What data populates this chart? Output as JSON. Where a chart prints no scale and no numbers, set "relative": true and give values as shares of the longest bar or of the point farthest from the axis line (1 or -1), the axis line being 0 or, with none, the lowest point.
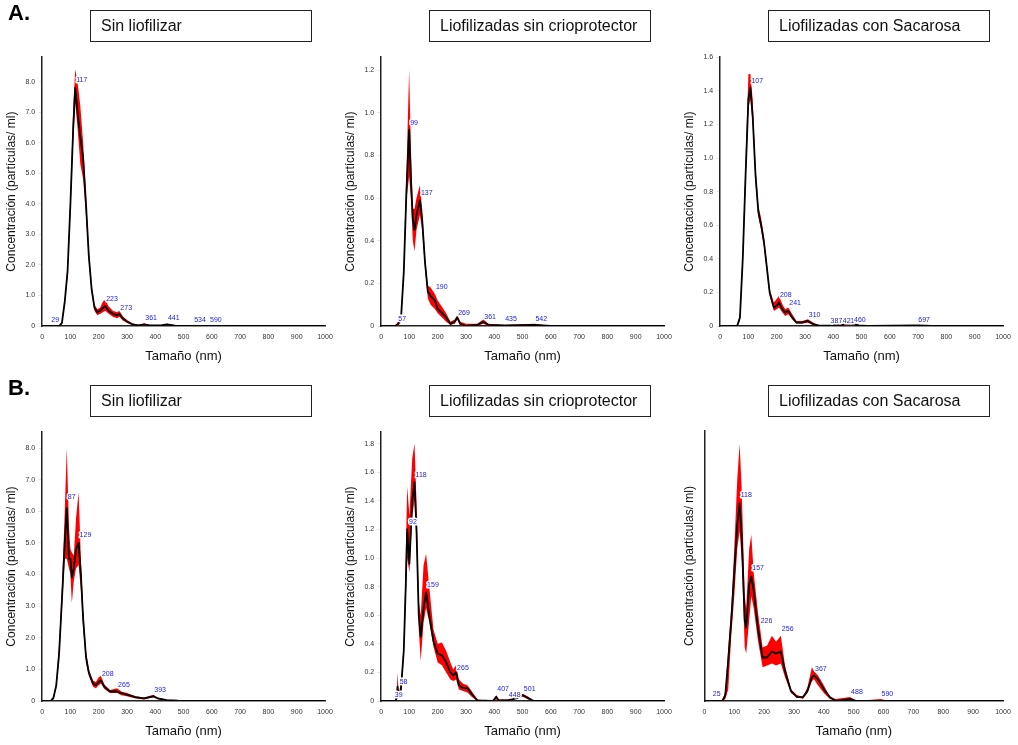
{
  "chart_data": [
    {
      "type": "line",
      "title": "Sin liofilizar",
      "xlabel": "Tamaño (nm)",
      "ylabel": "Concentración (partículas/ ml)",
      "xlim": [
        0,
        1000
      ],
      "xticks": [
        0,
        100,
        200,
        300,
        400,
        500,
        600,
        700,
        800,
        900,
        1000
      ],
      "ylim": [
        0,
        8.8
      ],
      "yticks": [
        0,
        {
          "value": 1,
          "label": "1.0"
        },
        {
          "value": 2,
          "label": "2.0"
        },
        {
          "value": 3,
          "label": "3.0"
        },
        {
          "value": 4,
          "label": "4.0"
        },
        {
          "value": 5,
          "label": "5.0"
        },
        {
          "value": 6,
          "label": "6.0"
        },
        {
          "value": 7,
          "label": "7.0"
        },
        {
          "value": 8,
          "label": "8.0"
        }
      ],
      "grid": false,
      "legend": false,
      "marker": "none",
      "line_style": "solid",
      "annotations": [
        "A.",
        {
          "text": "29",
          "x": 29,
          "y": 0.05
        },
        {
          "text": "117",
          "x": 117,
          "y": 7.9
        },
        {
          "text": "223",
          "x": 223,
          "y": 0.75
        },
        {
          "text": "273",
          "x": 273,
          "y": 0.45
        },
        {
          "text": "361",
          "x": 361,
          "y": 0.1
        },
        {
          "text": "441",
          "x": 441,
          "y": 0.1
        },
        {
          "text": "534",
          "x": 534,
          "y": 0.05
        },
        {
          "text": "590",
          "x": 590,
          "y": 0.05
        }
      ],
      "series": [
        {
          "color": "#000000",
          "x": [
            0,
            60,
            70,
            80,
            90,
            100,
            110,
            117,
            125,
            135,
            145,
            155,
            165,
            175,
            185,
            195,
            205,
            215,
            223,
            235,
            250,
            265,
            273,
            285,
            300,
            320,
            340,
            361,
            380,
            420,
            441,
            470,
            500,
            1000
          ],
          "values": [
            0,
            0,
            0.1,
            0.8,
            1.8,
            4.0,
            6.5,
            7.8,
            7.0,
            6.2,
            5.5,
            4.0,
            2.3,
            1.2,
            0.6,
            0.45,
            0.5,
            0.6,
            0.65,
            0.5,
            0.4,
            0.35,
            0.4,
            0.25,
            0.15,
            0.05,
            0.02,
            0.05,
            0.02,
            0.02,
            0.05,
            0.01,
            0,
            0
          ],
          "lower": [
            0,
            0,
            0.05,
            0.7,
            1.6,
            3.7,
            6.1,
            7.3,
            6.5,
            5.3,
            4.8,
            3.6,
            2.1,
            1.1,
            0.5,
            0.35,
            0.4,
            0.45,
            0.5,
            0.4,
            0.3,
            0.25,
            0.3,
            0.18,
            0.1,
            0.03,
            0.01,
            0.02,
            0.01,
            0.01,
            0.03,
            0,
            0,
            0
          ],
          "upper": [
            0,
            0,
            0.15,
            0.9,
            2.0,
            4.3,
            7.2,
            8.4,
            8.0,
            7.2,
            6.0,
            4.3,
            2.5,
            1.35,
            0.7,
            0.55,
            0.6,
            0.8,
            0.85,
            0.65,
            0.5,
            0.45,
            0.5,
            0.32,
            0.2,
            0.08,
            0.04,
            0.08,
            0.03,
            0.03,
            0.07,
            0.02,
            0,
            0
          ]
        }
      ]
    },
    {
      "type": "line",
      "title": "Liofilizadas sin crioprotector",
      "xlabel": "Tamaño (nm)",
      "ylabel": "Concentración (partículas/ ml)",
      "xlim": [
        0,
        1000
      ],
      "xticks": [
        0,
        100,
        200,
        300,
        400,
        500,
        600,
        700,
        800,
        900,
        1000
      ],
      "ylim": [
        0,
        1.26
      ],
      "yticks": [
        0,
        0.2,
        0.4,
        0.6,
        0.8,
        {
          "value": 1,
          "label": "1.0"
        },
        1.2
      ],
      "grid": false,
      "legend": false,
      "marker": "none",
      "line_style": "solid",
      "annotations": [
        {
          "text": "57",
          "x": 57,
          "y": 0.01
        },
        {
          "text": "99",
          "x": 99,
          "y": 0.93
        },
        {
          "text": "137",
          "x": 137,
          "y": 0.6
        },
        {
          "text": "190",
          "x": 190,
          "y": 0.16
        },
        {
          "text": "269",
          "x": 269,
          "y": 0.04
        },
        {
          "text": "361",
          "x": 361,
          "y": 0.02
        },
        {
          "text": "435",
          "x": 435,
          "y": 0.01
        },
        {
          "text": "542",
          "x": 542,
          "y": 0.01
        }
      ],
      "series": [
        {
          "color": "#000000",
          "x": [
            0,
            50,
            60,
            70,
            80,
            90,
            99,
            105,
            112,
            118,
            125,
            137,
            145,
            155,
            165,
            175,
            190,
            200,
            215,
            230,
            245,
            260,
            269,
            280,
            300,
            340,
            361,
            380,
            435,
            542,
            600,
            1000
          ],
          "values": [
            0,
            0,
            0.01,
            0.03,
            0.25,
            0.65,
            0.92,
            0.7,
            0.5,
            0.45,
            0.52,
            0.59,
            0.5,
            0.3,
            0.16,
            0.14,
            0.12,
            0.08,
            0.06,
            0.04,
            0.01,
            0.02,
            0.04,
            0.01,
            0,
            0.005,
            0.02,
            0.005,
            0.003,
            0.005,
            0,
            0
          ],
          "lower": [
            0,
            0,
            0,
            0.02,
            0.22,
            0.6,
            0.7,
            0.6,
            0.4,
            0.35,
            0.45,
            0.52,
            0.45,
            0.27,
            0.13,
            0.1,
            0.08,
            0.06,
            0.04,
            0.02,
            0.005,
            0.01,
            0.03,
            0,
            0,
            0,
            0.01,
            0,
            0,
            0,
            0,
            0
          ],
          "upper": [
            0,
            0,
            0.02,
            0.05,
            0.3,
            0.75,
            1.2,
            0.85,
            0.55,
            0.55,
            0.6,
            0.66,
            0.55,
            0.33,
            0.19,
            0.18,
            0.15,
            0.12,
            0.09,
            0.06,
            0.02,
            0.03,
            0.05,
            0.02,
            0.01,
            0.01,
            0.03,
            0.01,
            0.005,
            0.01,
            0,
            0
          ]
        }
      ]
    },
    {
      "type": "line",
      "title": "Liofilizadas con Sacarosa",
      "xlabel": "Tamaño (nm)",
      "ylabel": "Concentración (partículas/ ml)",
      "xlim": [
        0,
        1000
      ],
      "xticks": [
        0,
        100,
        200,
        300,
        400,
        500,
        600,
        700,
        800,
        900,
        1000
      ],
      "ylim": [
        0,
        1.6
      ],
      "yticks": [
        0,
        0.2,
        0.4,
        0.6,
        0.8,
        {
          "value": 1,
          "label": "1.0"
        },
        1.2,
        1.4,
        1.6
      ],
      "grid": false,
      "legend": false,
      "marker": "none",
      "line_style": "solid",
      "annotations": [
        {
          "text": "107",
          "x": 107,
          "y": 1.43
        },
        {
          "text": "208",
          "x": 208,
          "y": 0.16
        },
        {
          "text": "241",
          "x": 241,
          "y": 0.11
        },
        {
          "text": "310",
          "x": 310,
          "y": 0.04
        },
        {
          "text": "387",
          "x": 387,
          "y": 0.003
        },
        {
          "text": "421",
          "x": 430,
          "y": 0.005
        },
        {
          "text": "460",
          "x": 470,
          "y": 0.011
        },
        {
          "text": "697",
          "x": 697,
          "y": 0.01
        }
      ],
      "series": [
        {
          "color": "#000000",
          "x": [
            0,
            60,
            70,
            80,
            90,
            100,
            107,
            115,
            125,
            135,
            145,
            155,
            165,
            175,
            190,
            200,
            208,
            220,
            230,
            241,
            255,
            270,
            290,
            310,
            330,
            350,
            400,
            430,
            460,
            490,
            520,
            697,
            750,
            1000
          ],
          "values": [
            0,
            0,
            0.05,
            0.4,
            0.9,
            1.35,
            1.42,
            1.25,
            0.9,
            0.68,
            0.6,
            0.5,
            0.35,
            0.2,
            0.11,
            0.12,
            0.14,
            0.1,
            0.08,
            0.09,
            0.05,
            0.02,
            0.02,
            0.03,
            0.01,
            0.002,
            0.003,
            0.005,
            0.015,
            0.003,
            0,
            0.003,
            0,
            0
          ],
          "lower": [
            0,
            0,
            0.03,
            0.35,
            0.85,
            1.3,
            1.35,
            1.2,
            0.85,
            0.65,
            0.57,
            0.47,
            0.33,
            0.18,
            0.09,
            0.1,
            0.11,
            0.08,
            0.06,
            0.07,
            0.04,
            0.015,
            0.015,
            0.02,
            0.005,
            0,
            0,
            0,
            0.008,
            0,
            0,
            0,
            0,
            0
          ],
          "upper": [
            0,
            0,
            0.07,
            0.45,
            1.0,
            1.5,
            1.5,
            1.35,
            0.95,
            0.72,
            0.64,
            0.53,
            0.38,
            0.22,
            0.14,
            0.16,
            0.18,
            0.13,
            0.1,
            0.11,
            0.07,
            0.03,
            0.03,
            0.04,
            0.02,
            0.005,
            0.006,
            0.01,
            0.025,
            0.006,
            0,
            0.006,
            0,
            0
          ]
        }
      ]
    },
    {
      "type": "line",
      "title": "Sin liofilizar",
      "xlabel": "Tamaño (nm)",
      "ylabel": "Concentración (partículas/ ml)",
      "xlim": [
        0,
        1000
      ],
      "xticks": [
        0,
        100,
        200,
        300,
        400,
        500,
        600,
        700,
        800,
        900,
        1000
      ],
      "ylim": [
        0,
        8.5
      ],
      "yticks": [
        0,
        {
          "value": 1,
          "label": "1.0"
        },
        {
          "value": 2,
          "label": "2.0"
        },
        {
          "value": 3,
          "label": "3.0"
        },
        {
          "value": 4,
          "label": "4.0"
        },
        {
          "value": 5,
          "label": "5.0"
        },
        {
          "value": 6,
          "label": "6.0"
        },
        {
          "value": 7,
          "label": "7.0"
        },
        {
          "value": 8,
          "label": "8.0"
        }
      ],
      "grid": false,
      "legend": false,
      "marker": "none",
      "line_style": "solid",
      "annotations": [
        "B.",
        {
          "text": "87",
          "x": 87,
          "y": 6.3
        },
        {
          "text": "129",
          "x": 129,
          "y": 5.1
        },
        {
          "text": "208",
          "x": 208,
          "y": 0.7
        },
        {
          "text": "265",
          "x": 265,
          "y": 0.35
        },
        {
          "text": "393",
          "x": 393,
          "y": 0.2
        }
      ],
      "series": [
        {
          "color": "#000000",
          "x": [
            0,
            30,
            40,
            50,
            60,
            70,
            80,
            87,
            95,
            100,
            105,
            112,
            120,
            129,
            137,
            145,
            155,
            165,
            180,
            190,
            200,
            208,
            220,
            240,
            265,
            280,
            300,
            330,
            360,
            393,
            410,
            440,
            480,
            520,
            1000
          ],
          "values": [
            0,
            0,
            0.1,
            0.5,
            1.5,
            3.2,
            5.0,
            6.1,
            4.5,
            4.5,
            3.9,
            4.2,
            4.8,
            5.0,
            4.0,
            2.6,
            1.4,
            0.9,
            0.55,
            0.5,
            0.6,
            0.65,
            0.45,
            0.3,
            0.3,
            0.25,
            0.2,
            0.12,
            0.08,
            0.15,
            0.08,
            0.03,
            0.01,
            0,
            0
          ],
          "lower": [
            0,
            0,
            0.05,
            0.4,
            1.3,
            2.9,
            4.5,
            4.5,
            4.2,
            4.0,
            3.1,
            3.8,
            4.2,
            4.3,
            3.5,
            2.3,
            1.2,
            0.8,
            0.45,
            0.4,
            0.5,
            0.55,
            0.38,
            0.25,
            0.25,
            0.18,
            0.15,
            0.08,
            0.05,
            0.12,
            0.05,
            0.02,
            0,
            0,
            0
          ],
          "upper": [
            0,
            0,
            0.15,
            0.6,
            1.8,
            3.6,
            6.0,
            8.0,
            5.5,
            4.8,
            4.7,
            4.6,
            5.8,
            6.6,
            4.5,
            2.9,
            1.6,
            1.0,
            0.65,
            0.6,
            0.75,
            0.8,
            0.52,
            0.35,
            0.4,
            0.3,
            0.25,
            0.15,
            0.11,
            0.2,
            0.1,
            0.04,
            0.02,
            0,
            0
          ]
        }
      ]
    },
    {
      "type": "line",
      "title": "Liofilizadas sin crioprotector",
      "xlabel": "Tamaño (nm)",
      "ylabel": "Concentración (partículas/ ml)",
      "xlim": [
        0,
        1000
      ],
      "xticks": [
        0,
        100,
        200,
        300,
        400,
        500,
        600,
        700,
        800,
        900,
        1000
      ],
      "ylim": [
        0,
        1.88
      ],
      "yticks": [
        0,
        0.2,
        0.4,
        0.6,
        0.8,
        {
          "value": 1,
          "label": "1.0"
        },
        1.2,
        1.4,
        1.6,
        1.8
      ],
      "grid": false,
      "legend": false,
      "marker": "none",
      "line_style": "solid",
      "annotations": [
        {
          "text": "39",
          "x": 45,
          "y": 0.01
        },
        {
          "text": "58",
          "x": 62,
          "y": 0.1
        },
        {
          "text": "92",
          "x": 95,
          "y": 1.22
        },
        {
          "text": "118",
          "x": 118,
          "y": 1.55
        },
        {
          "text": "159",
          "x": 159,
          "y": 0.78
        },
        {
          "text": "265",
          "x": 265,
          "y": 0.2
        },
        {
          "text": "407",
          "x": 407,
          "y": 0.05
        },
        {
          "text": "448",
          "x": 448,
          "y": 0.01
        },
        {
          "text": "501",
          "x": 501,
          "y": 0.05
        }
      ],
      "series": [
        {
          "color": "#000000",
          "x": [
            0,
            50,
            55,
            58,
            62,
            70,
            80,
            87,
            92,
            100,
            110,
            118,
            125,
            133,
            140,
            150,
            159,
            170,
            185,
            200,
            215,
            230,
            245,
            255,
            265,
            275,
            290,
            305,
            320,
            340,
            395,
            407,
            415,
            448,
            480,
            501,
            520,
            540,
            1000
          ],
          "values": [
            0,
            0,
            0.02,
            0.1,
            0.03,
            0.08,
            0.35,
            0.8,
            1.2,
            0.96,
            1.4,
            1.53,
            1.2,
            0.6,
            0.45,
            0.65,
            0.76,
            0.6,
            0.42,
            0.33,
            0.32,
            0.27,
            0.2,
            0.18,
            0.2,
            0.11,
            0.09,
            0.09,
            0.05,
            0.005,
            0,
            0.03,
            0.005,
            0.005,
            0.02,
            0.04,
            0.02,
            0,
            0
          ],
          "lower": [
            0,
            0,
            0.01,
            0.05,
            0.02,
            0.06,
            0.3,
            0.7,
            1.0,
            0.9,
            1.3,
            1.4,
            1.1,
            0.5,
            0.28,
            0.55,
            0.65,
            0.55,
            0.38,
            0.27,
            0.25,
            0.2,
            0.15,
            0.14,
            0.15,
            0.08,
            0.07,
            0.06,
            0.03,
            0,
            0,
            0.01,
            0,
            0,
            0.015,
            0.03,
            0.01,
            0,
            0
          ],
          "upper": [
            0,
            0,
            0.05,
            0.2,
            0.05,
            0.12,
            0.4,
            1.0,
            1.5,
            1.3,
            1.7,
            1.8,
            1.4,
            0.7,
            0.6,
            0.95,
            1.03,
            0.8,
            0.5,
            0.4,
            0.41,
            0.35,
            0.27,
            0.22,
            0.25,
            0.15,
            0.12,
            0.11,
            0.07,
            0.01,
            0,
            0.04,
            0.01,
            0.01,
            0.03,
            0.05,
            0.03,
            0,
            0
          ]
        }
      ]
    },
    {
      "type": "line",
      "title": "Liofilizadas con Sacarosa",
      "xlabel": "Tamaño (nm)",
      "ylabel": "Concentración (partículas/ ml)",
      "xlim": [
        0,
        1000
      ],
      "xticks": [
        0,
        100,
        200,
        300,
        400,
        500,
        600,
        700,
        800,
        900,
        1000
      ],
      "relative": true,
      "grid": false,
      "legend": false,
      "marker": "none",
      "line_style": "solid",
      "annotations": [
        {
          "text": "25",
          "x": 25,
          "y": 0.01
        },
        {
          "text": "118",
          "x": 118,
          "y": 1.02
        },
        {
          "text": "157",
          "x": 157,
          "y": 0.65
        },
        {
          "text": "226",
          "x": 185,
          "y": 0.38
        },
        {
          "text": "256",
          "x": 256,
          "y": 0.34
        },
        {
          "text": "367",
          "x": 367,
          "y": 0.14
        },
        {
          "text": "488",
          "x": 488,
          "y": 0.02
        },
        {
          "text": "590",
          "x": 590,
          "y": 0.01
        }
      ],
      "series": [
        {
          "color": "#000000",
          "x": [
            0,
            60,
            70,
            80,
            90,
            100,
            110,
            118,
            125,
            135,
            140,
            150,
            157,
            165,
            180,
            195,
            210,
            226,
            240,
            256,
            270,
            290,
            310,
            330,
            345,
            360,
            367,
            380,
            400,
            420,
            440,
            488,
            510,
            590,
            620,
            1000
          ],
          "values": [
            0,
            0,
            0.03,
            0.21,
            0.41,
            0.65,
            0.89,
            1,
            0.83,
            0.41,
            0.37,
            0.59,
            0.63,
            0.56,
            0.36,
            0.22,
            0.22,
            0.25,
            0.24,
            0.25,
            0.15,
            0.05,
            0.02,
            0.02,
            0.05,
            0.12,
            0.13,
            0.11,
            0.06,
            0.02,
            0,
            0.01,
            0,
            0,
            0,
            0
          ],
          "lower": [
            0,
            0,
            0.01,
            0.06,
            0.33,
            0.53,
            0.77,
            0.86,
            0.71,
            0.27,
            0.24,
            0.41,
            0.53,
            0.47,
            0.3,
            0.17,
            0.18,
            0.19,
            0.18,
            0.19,
            0.12,
            0.04,
            0.02,
            0.01,
            0.04,
            0.1,
            0.11,
            0.08,
            0.04,
            0.01,
            0,
            0.01,
            0,
            0,
            0,
            0
          ],
          "upper": [
            0,
            0,
            0.05,
            0.27,
            0.47,
            0.77,
            1.12,
            1.3,
            1.07,
            0.53,
            0.47,
            0.77,
            0.84,
            0.65,
            0.44,
            0.27,
            0.28,
            0.33,
            0.3,
            0.33,
            0.18,
            0.06,
            0.03,
            0.02,
            0.07,
            0.17,
            0.15,
            0.13,
            0.08,
            0.02,
            0.01,
            0.02,
            0,
            0.01,
            0,
            0
          ]
        }
      ]
    }
  ]
}
